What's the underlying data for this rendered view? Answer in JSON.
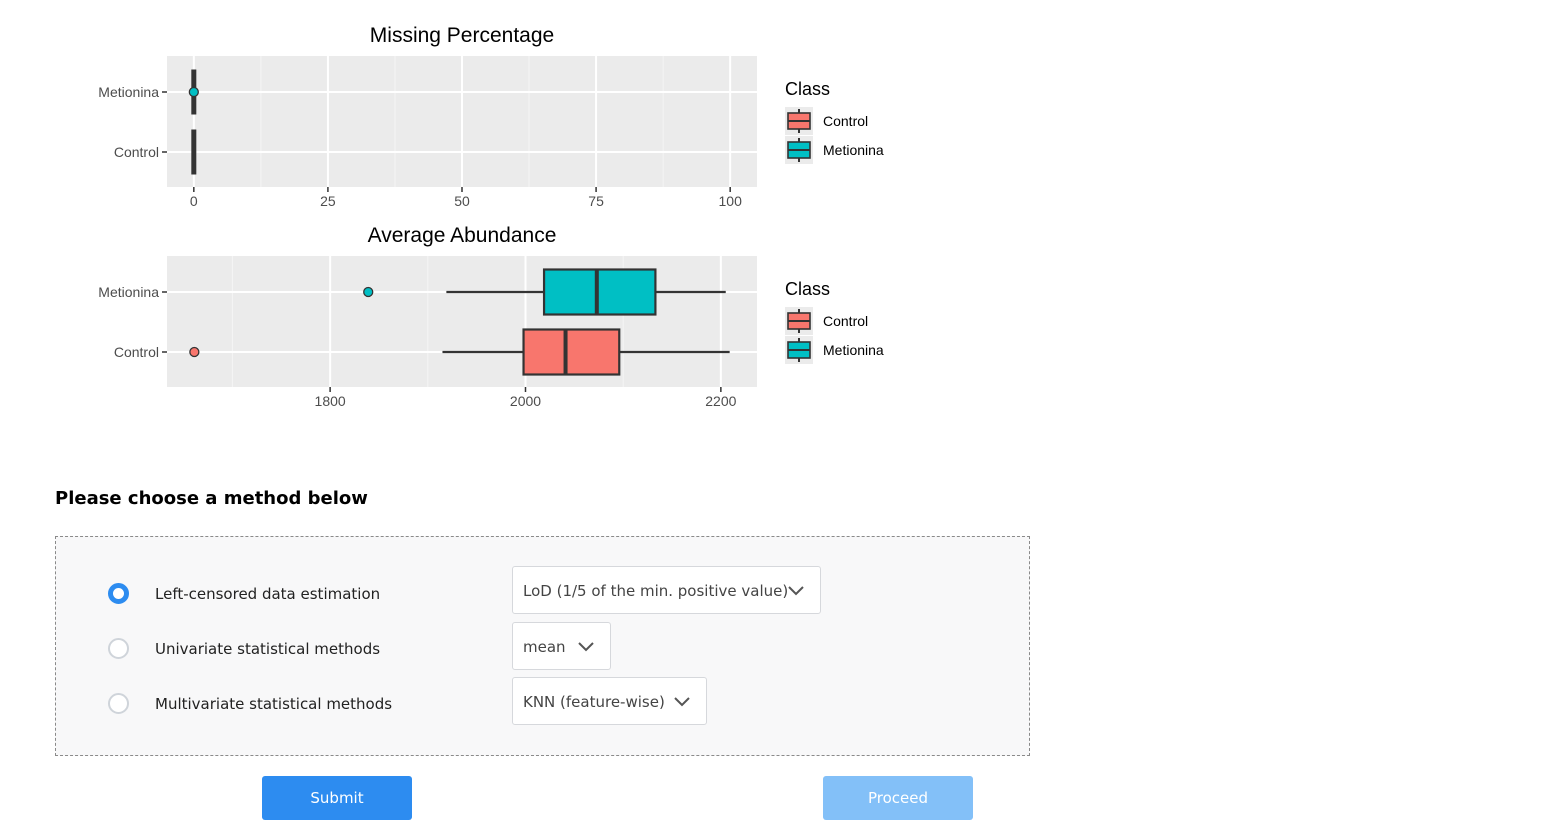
{
  "chart_data": [
    {
      "type": "boxplot",
      "orientation": "horizontal",
      "title": "Missing Percentage",
      "categories": [
        "Metionina",
        "Control"
      ],
      "xlim": [
        -5,
        105
      ],
      "x_ticks": [
        0,
        25,
        50,
        75,
        100
      ],
      "x_tick_labels": [
        "0",
        "25",
        "50",
        "75",
        "100"
      ],
      "grid": true,
      "legend_title": "Class",
      "legend_entries": [
        "Control",
        "Metionina"
      ],
      "series": [
        {
          "name": "Metionina",
          "min": 0,
          "q1": 0,
          "median": 0,
          "q3": 0,
          "max": 0,
          "outliers": [
            0
          ]
        },
        {
          "name": "Control",
          "min": 0,
          "q1": 0,
          "median": 0,
          "q3": 0,
          "max": 0,
          "outliers": []
        }
      ]
    },
    {
      "type": "boxplot",
      "orientation": "horizontal",
      "title": "Average Abundance",
      "categories": [
        "Metionina",
        "Control"
      ],
      "xlim": [
        1633,
        2237
      ],
      "x_ticks": [
        1800,
        2000,
        2200
      ],
      "x_tick_labels": [
        "1800",
        "2000",
        "2200"
      ],
      "grid": true,
      "legend_title": "Class",
      "legend_entries": [
        "Control",
        "Metionina"
      ],
      "series": [
        {
          "name": "Metionina",
          "min": 1919,
          "q1": 2019,
          "median": 2073,
          "q3": 2133,
          "max": 2205,
          "outliers": [
            1839
          ]
        },
        {
          "name": "Control",
          "min": 1915,
          "q1": 1998,
          "median": 2041,
          "q3": 2096,
          "max": 2209,
          "outliers": [
            1661
          ]
        }
      ]
    }
  ],
  "colors": {
    "control": "#F8766D",
    "metionina": "#00BFC4",
    "panel_bg": "#EBEBEB",
    "accent": "#2d8cf0",
    "accent_disabled": "#83c0f8"
  },
  "section": {
    "heading": "Please choose a method below"
  },
  "methods": [
    {
      "label": "Left-censored data estimation",
      "selected": true,
      "select_value": "LoD (1/5 of the min. positive value)"
    },
    {
      "label": "Univariate statistical methods",
      "selected": false,
      "select_value": "mean"
    },
    {
      "label": "Multivariate statistical methods",
      "selected": false,
      "select_value": "KNN (feature-wise)"
    }
  ],
  "icons": {
    "dropdown": "chevron-down-icon"
  },
  "buttons": {
    "submit": "Submit",
    "proceed": "Proceed"
  }
}
